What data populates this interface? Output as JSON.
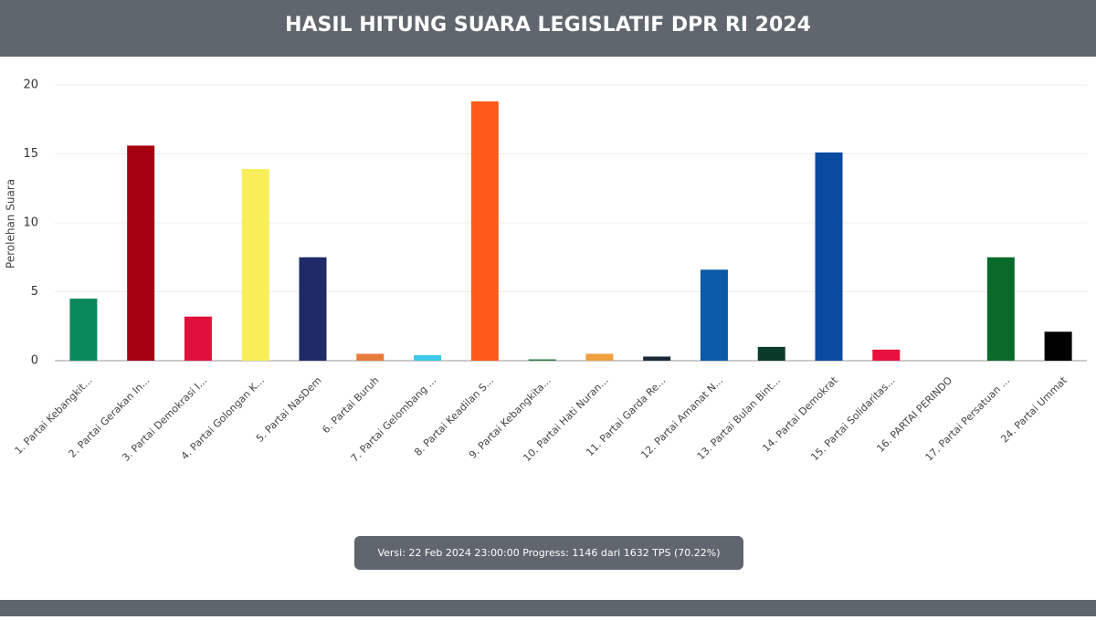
{
  "chart_data": {
    "type": "bar",
    "title": "HASIL HITUNG SUARA LEGISLATIF DPR RI 2024",
    "y_label": "Perolehan Suara",
    "categories": [
      "1. Partai Kebangkit...",
      "2. Partai Gerakan In...",
      "3. Partai Demokrasi I...",
      "4. Partai Golongan K...",
      "5. Partai NasDem",
      "6. Partai Buruh",
      "7. Partai Gelombang ...",
      "8. Partai Keadilan S...",
      "9. Partai Kebangkita...",
      "10. Partai Hati Nuran...",
      "11. Partai Garda Re...",
      "12. Partai Amanat N...",
      "13. Partai Bulan Bint...",
      "14. Partai Demokrat",
      "15. Partai Solidaritas...",
      "16. PARTAI PERINDO",
      "17. Partai Persatuan ...",
      "24. Partai Ummat"
    ],
    "values": [
      4.5,
      15.6,
      3.2,
      13.9,
      7.5,
      0.5,
      0.4,
      18.8,
      0.1,
      0.5,
      0.3,
      6.6,
      1.0,
      15.1,
      0.8,
      0,
      7.5,
      2.1
    ],
    "colors": [
      "#0a8a5a",
      "#a50011",
      "#e0103c",
      "#f8ee5a",
      "#1f2a68",
      "#e87a3c",
      "#3cc8e8",
      "#ff5a1a",
      "#2a7a4a",
      "#f0a040",
      "#1a2a3a",
      "#0a5aa8",
      "#0a3a2a",
      "#0a4aa0",
      "#e8103c",
      "#1a3a8a",
      "#0a6a2a",
      "#000000"
    ],
    "ylim": [
      0,
      20
    ],
    "yticks": [
      0,
      5,
      10,
      15,
      20
    ],
    "grid": true,
    "footer": "Versi: 22 Feb 2024 23:00:00 Progress: 1146 dari 1632 TPS (70.22%)"
  }
}
